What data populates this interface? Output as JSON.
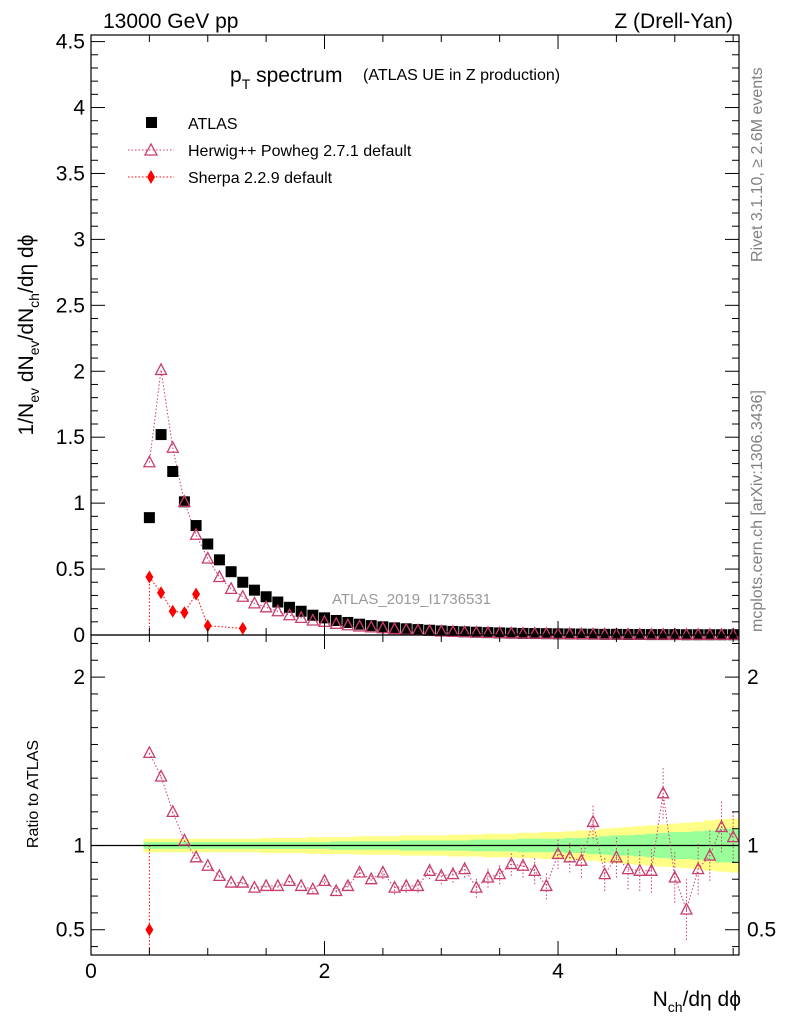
{
  "header": {
    "left": "13000 GeV pp",
    "right": "Z (Drell-Yan)"
  },
  "title": {
    "main": "p",
    "main_sub": "T",
    "main_rest": " spectrum",
    "note": "(ATLAS UE in Z production)"
  },
  "side_labels": {
    "rivet": "Rivet 3.1.10, ≥ 2.6M events",
    "mcplots": "mcplots.cern.ch [arXiv:1306.3436]"
  },
  "watermark": "ATLAS_2019_I1736531",
  "colors": {
    "atlas": "#000000",
    "herwig": "#c83c6e",
    "sherpa": "#ff0000",
    "band_inner": "#99ff99",
    "band_outer": "#ffff88"
  },
  "chart_data": [
    {
      "type": "scatter",
      "panel": "main",
      "ylabel_parts": [
        "1/N",
        "ev",
        " dN",
        "ev",
        "/dN",
        "ch",
        "/dη dϕ"
      ],
      "xlim": [
        0,
        5.55
      ],
      "ylim": [
        0,
        4.55
      ],
      "yticks": [
        0,
        0.5,
        1,
        1.5,
        2,
        2.5,
        3,
        3.5,
        4,
        4.5
      ],
      "ytick_labels": [
        "0",
        "0.5",
        "1",
        "1.5",
        "2",
        "2.5",
        "3",
        "3.5",
        "4",
        "4.5"
      ],
      "legend_position": "top-left",
      "series": [
        {
          "name": "ATLAS",
          "marker": "square",
          "x": [
            0.5,
            0.6,
            0.7,
            0.8,
            0.9,
            1.0,
            1.1,
            1.2,
            1.3,
            1.4,
            1.5,
            1.6,
            1.7,
            1.8,
            1.9,
            2.0,
            2.1,
            2.2,
            2.3,
            2.4,
            2.5,
            2.6,
            2.7,
            2.8,
            2.9,
            3.0,
            3.1,
            3.2,
            3.3,
            3.4,
            3.5,
            3.6,
            3.7,
            3.8,
            3.9,
            4.0,
            4.1,
            4.2,
            4.3,
            4.4,
            4.5,
            4.6,
            4.7,
            4.8,
            4.9,
            5.0,
            5.1,
            5.2,
            5.3,
            5.4,
            5.5
          ],
          "y": [
            0.89,
            1.52,
            1.24,
            1.01,
            0.83,
            0.69,
            0.57,
            0.48,
            0.4,
            0.34,
            0.29,
            0.25,
            0.21,
            0.18,
            0.15,
            0.13,
            0.11,
            0.095,
            0.082,
            0.071,
            0.062,
            0.054,
            0.047,
            0.041,
            0.036,
            0.031,
            0.027,
            0.024,
            0.021,
            0.018,
            0.016,
            0.014,
            0.012,
            0.011,
            0.01,
            0.009,
            0.008,
            0.007,
            0.006,
            0.005,
            0.005,
            0.004,
            0.004,
            0.003,
            0.003,
            0.003,
            0.002,
            0.002,
            0.002,
            0.002,
            0.002
          ]
        },
        {
          "name": "Herwig++ Powheg 2.7.1 default",
          "marker": "triangle-open",
          "line": "dotted",
          "x": [
            0.5,
            0.6,
            0.7,
            0.8,
            0.9,
            1.0,
            1.1,
            1.2,
            1.3,
            1.4,
            1.5,
            1.6,
            1.7,
            1.8,
            1.9,
            2.0,
            2.1,
            2.2,
            2.3,
            2.4,
            2.5,
            2.6,
            2.7,
            2.8,
            2.9,
            3.0,
            3.1,
            3.2,
            3.3,
            3.4,
            3.5,
            3.6,
            3.7,
            3.8,
            3.9,
            4.0,
            4.1,
            4.2,
            4.3,
            4.4,
            4.5,
            4.6,
            4.7,
            4.8,
            4.9,
            5.0,
            5.1,
            5.2,
            5.3,
            5.4,
            5.5
          ],
          "y": [
            1.31,
            2.01,
            1.42,
            1.01,
            0.76,
            0.58,
            0.44,
            0.35,
            0.29,
            0.24,
            0.21,
            0.18,
            0.15,
            0.13,
            0.11,
            0.1,
            0.085,
            0.074,
            0.065,
            0.058,
            0.051,
            0.045,
            0.04,
            0.035,
            0.031,
            0.027,
            0.024,
            0.021,
            0.018,
            0.016,
            0.014,
            0.012,
            0.011,
            0.01,
            0.009,
            0.008,
            0.007,
            0.006,
            0.005,
            0.005,
            0.004,
            0.004,
            0.003,
            0.003,
            0.003,
            0.002,
            0.002,
            0.002,
            0.002,
            0.002,
            0.002
          ]
        },
        {
          "name": "Sherpa 2.2.9 default",
          "marker": "diamond",
          "line": "dotted",
          "x": [
            0.5,
            0.6,
            0.7,
            0.8,
            0.9,
            1.0,
            1.3
          ],
          "y": [
            0.44,
            0.32,
            0.18,
            0.17,
            0.31,
            0.07,
            0.05
          ]
        }
      ]
    },
    {
      "type": "scatter",
      "panel": "ratio",
      "ylabel": "Ratio to ATLAS",
      "xlabel_parts": [
        "N",
        "ch",
        "/dη dϕ"
      ],
      "xlim": [
        0,
        5.55
      ],
      "ylim": [
        0.35,
        2.25
      ],
      "xticks": [
        0,
        2,
        4
      ],
      "xtick_labels": [
        "0",
        "2",
        "4"
      ],
      "yticks": [
        0.5,
        1,
        2
      ],
      "ytick_labels": [
        "0.5",
        "1",
        "2"
      ],
      "band_x": [
        0.45,
        0.55,
        0.65,
        0.75,
        0.85,
        0.95,
        1.05,
        1.15,
        1.25,
        1.35,
        1.45,
        1.55,
        1.65,
        1.75,
        1.85,
        1.95,
        2.05,
        2.15,
        2.25,
        2.35,
        2.45,
        2.55,
        2.65,
        2.75,
        2.85,
        2.95,
        3.05,
        3.15,
        3.25,
        3.35,
        3.45,
        3.55,
        3.65,
        3.75,
        3.85,
        3.95,
        4.05,
        4.15,
        4.25,
        4.35,
        4.45,
        4.55,
        4.65,
        4.75,
        4.85,
        4.95,
        5.05,
        5.15,
        5.25,
        5.35,
        5.45,
        5.55
      ],
      "band_inner": [
        0.02,
        0.02,
        0.02,
        0.02,
        0.02,
        0.02,
        0.02,
        0.02,
        0.02,
        0.02,
        0.02,
        0.02,
        0.02,
        0.02,
        0.02,
        0.02,
        0.025,
        0.025,
        0.025,
        0.025,
        0.025,
        0.025,
        0.03,
        0.03,
        0.03,
        0.03,
        0.03,
        0.03,
        0.035,
        0.035,
        0.035,
        0.035,
        0.04,
        0.04,
        0.04,
        0.04,
        0.045,
        0.045,
        0.05,
        0.055,
        0.06,
        0.06,
        0.065,
        0.07,
        0.075,
        0.08,
        0.08,
        0.085,
        0.09,
        0.1,
        0.1,
        0.1
      ],
      "band_outer": [
        0.04,
        0.04,
        0.04,
        0.04,
        0.04,
        0.04,
        0.04,
        0.04,
        0.04,
        0.04,
        0.045,
        0.045,
        0.045,
        0.045,
        0.05,
        0.05,
        0.05,
        0.05,
        0.055,
        0.055,
        0.055,
        0.055,
        0.06,
        0.06,
        0.06,
        0.06,
        0.065,
        0.065,
        0.065,
        0.07,
        0.07,
        0.07,
        0.075,
        0.075,
        0.08,
        0.08,
        0.085,
        0.09,
        0.09,
        0.1,
        0.105,
        0.11,
        0.115,
        0.12,
        0.125,
        0.13,
        0.135,
        0.14,
        0.15,
        0.155,
        0.16,
        0.16
      ],
      "series": [
        {
          "name": "Herwig++ Powheg 2.7.1 default",
          "marker": "triangle-open",
          "x": [
            0.5,
            0.6,
            0.7,
            0.8,
            0.9,
            1.0,
            1.1,
            1.2,
            1.3,
            1.4,
            1.5,
            1.6,
            1.7,
            1.8,
            1.9,
            2.0,
            2.1,
            2.2,
            2.3,
            2.4,
            2.5,
            2.6,
            2.7,
            2.8,
            2.9,
            3.0,
            3.1,
            3.2,
            3.3,
            3.4,
            3.5,
            3.6,
            3.7,
            3.8,
            3.9,
            4.0,
            4.1,
            4.2,
            4.3,
            4.4,
            4.5,
            4.6,
            4.7,
            4.8,
            4.9,
            5.0,
            5.1,
            5.2,
            5.3,
            5.4,
            5.5
          ],
          "y": [
            1.55,
            1.41,
            1.2,
            1.03,
            0.93,
            0.88,
            0.82,
            0.78,
            0.78,
            0.75,
            0.76,
            0.76,
            0.79,
            0.76,
            0.74,
            0.79,
            0.73,
            0.76,
            0.84,
            0.8,
            0.84,
            0.75,
            0.76,
            0.76,
            0.85,
            0.82,
            0.83,
            0.86,
            0.75,
            0.81,
            0.83,
            0.89,
            0.88,
            0.85,
            0.76,
            0.95,
            0.93,
            0.91,
            1.14,
            0.83,
            0.93,
            0.86,
            0.85,
            0.85,
            1.31,
            0.81,
            0.62,
            0.86,
            0.94,
            1.11,
            1.05
          ],
          "err": [
            0.01,
            0.01,
            0.01,
            0.01,
            0.01,
            0.01,
            0.01,
            0.01,
            0.01,
            0.01,
            0.01,
            0.01,
            0.01,
            0.01,
            0.02,
            0.02,
            0.03,
            0.03,
            0.03,
            0.03,
            0.04,
            0.04,
            0.04,
            0.04,
            0.05,
            0.05,
            0.05,
            0.05,
            0.06,
            0.06,
            0.06,
            0.07,
            0.07,
            0.08,
            0.08,
            0.09,
            0.09,
            0.1,
            0.1,
            0.1,
            0.12,
            0.12,
            0.12,
            0.13,
            0.15,
            0.15,
            0.18,
            0.15,
            0.15,
            0.15,
            0.15
          ]
        },
        {
          "name": "Sherpa 2.2.9 default",
          "marker": "diamond",
          "x": [
            0.5
          ],
          "y": [
            0.5
          ]
        }
      ]
    }
  ]
}
